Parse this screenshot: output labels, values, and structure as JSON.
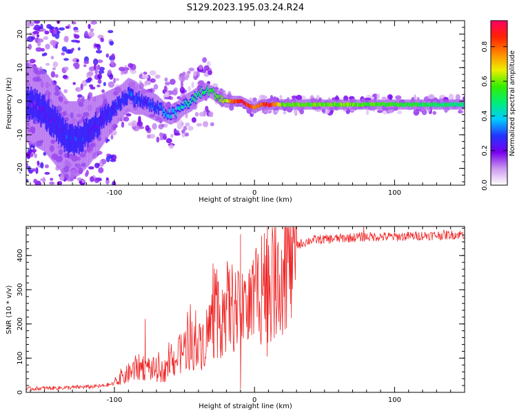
{
  "title": "S129.2023.195.03.24.R24",
  "colors": {
    "snr_line": "#ee2222",
    "colormap": [
      "#ffffff",
      "#cc99ee",
      "#7700ee",
      "#2233ff",
      "#00ccff",
      "#00ee77",
      "#33ee00",
      "#eeee00",
      "#ff8800",
      "#ff2200",
      "#ff0066"
    ]
  },
  "chart_data": [
    {
      "type": "heatmap",
      "title": "",
      "xlabel": "Height of straight line (km)",
      "ylabel": "Frequency (Hz)",
      "xlim": [
        -163,
        150
      ],
      "ylim": [
        -25,
        24
      ],
      "x_ticks": [
        -100,
        0,
        100
      ],
      "y_ticks": [
        -20,
        -10,
        0,
        10,
        20
      ],
      "colorbar": {
        "label": "Normalized spectral amplitude",
        "range": [
          0,
          0.95
        ],
        "ticks": [
          0.0,
          0.2,
          0.4,
          0.6,
          0.8
        ],
        "orientation": "vertical",
        "position": "right"
      },
      "ridge": {
        "x": [
          -163,
          -150,
          -140,
          -133,
          -125,
          -118,
          -110,
          -100,
          -95,
          -90,
          -85,
          -80,
          -75,
          -70,
          -65,
          -60,
          -55,
          -50,
          -45,
          -40,
          -35,
          -32,
          -28,
          -25,
          -20,
          -15,
          -10,
          -5,
          0,
          5,
          10,
          15,
          20,
          40,
          60,
          80,
          100,
          120,
          150
        ],
        "frequency": [
          0,
          -3,
          -8,
          -12,
          -11,
          -9,
          -6,
          -2,
          0,
          2,
          1,
          0,
          -1,
          -2,
          -3,
          -4,
          -3,
          -1,
          0,
          2,
          3,
          3,
          2,
          1,
          0,
          0,
          0,
          -1,
          -2,
          -1,
          -1,
          -1,
          -1,
          -1,
          -1,
          -1,
          -1,
          -1,
          -1
        ],
        "amplitude": [
          0.2,
          0.22,
          0.25,
          0.3,
          0.3,
          0.25,
          0.24,
          0.28,
          0.3,
          0.32,
          0.3,
          0.28,
          0.3,
          0.3,
          0.35,
          0.4,
          0.42,
          0.45,
          0.48,
          0.5,
          0.52,
          0.55,
          0.58,
          0.62,
          0.68,
          0.85,
          0.92,
          0.88,
          0.78,
          0.85,
          0.92,
          0.8,
          0.62,
          0.6,
          0.62,
          0.6,
          0.58,
          0.55,
          0.5
        ],
        "width_hz": [
          12,
          12,
          12,
          12,
          11,
          10,
          8,
          6,
          5,
          5,
          5,
          4,
          4,
          4,
          3,
          3,
          3,
          3,
          3,
          2.5,
          2.5,
          2,
          2,
          2,
          2,
          1.6,
          1.6,
          1.6,
          1.6,
          1.6,
          1.6,
          1.6,
          1.6,
          1.5,
          1.5,
          1.5,
          1.5,
          1.5,
          1.5
        ]
      }
    },
    {
      "type": "line",
      "title": "",
      "xlabel": "Height of straight line (km)",
      "ylabel": "SNR (10 * v/v)",
      "xlim": [
        -163,
        150
      ],
      "ylim": [
        0,
        485
      ],
      "x_ticks": [
        -100,
        0,
        100
      ],
      "y_ticks": [
        0,
        100,
        200,
        300,
        400
      ],
      "series": [
        {
          "x": [
            -163,
            -150,
            -130,
            -110,
            -100,
            -95,
            -90,
            -85,
            -80,
            -75,
            -70,
            -65,
            -60,
            -55,
            -50,
            -45,
            -40,
            -35,
            -30,
            -25,
            -20,
            -15,
            -10,
            -5,
            0,
            5,
            10,
            15,
            20,
            25,
            30,
            40,
            60,
            80,
            100,
            120,
            150
          ],
          "y": [
            10,
            12,
            14,
            18,
            25,
            40,
            55,
            70,
            75,
            70,
            65,
            60,
            85,
            100,
            130,
            140,
            130,
            160,
            210,
            210,
            250,
            250,
            220,
            240,
            280,
            300,
            310,
            340,
            370,
            400,
            430,
            445,
            450,
            455,
            455,
            458,
            462
          ],
          "spikes": [
            {
              "x": -78,
              "y": 215
            },
            {
              "x": -42,
              "y": 240
            },
            {
              "x": -23,
              "y": 300
            },
            {
              "x": -10,
              "y": 462
            },
            {
              "x": -10,
              "y": 10
            },
            {
              "x": 5,
              "y": 458
            },
            {
              "x": 7,
              "y": 465
            },
            {
              "x": 9,
              "y": 105
            },
            {
              "x": 10,
              "y": 430
            },
            {
              "x": 78,
              "y": 485
            }
          ]
        }
      ]
    }
  ]
}
